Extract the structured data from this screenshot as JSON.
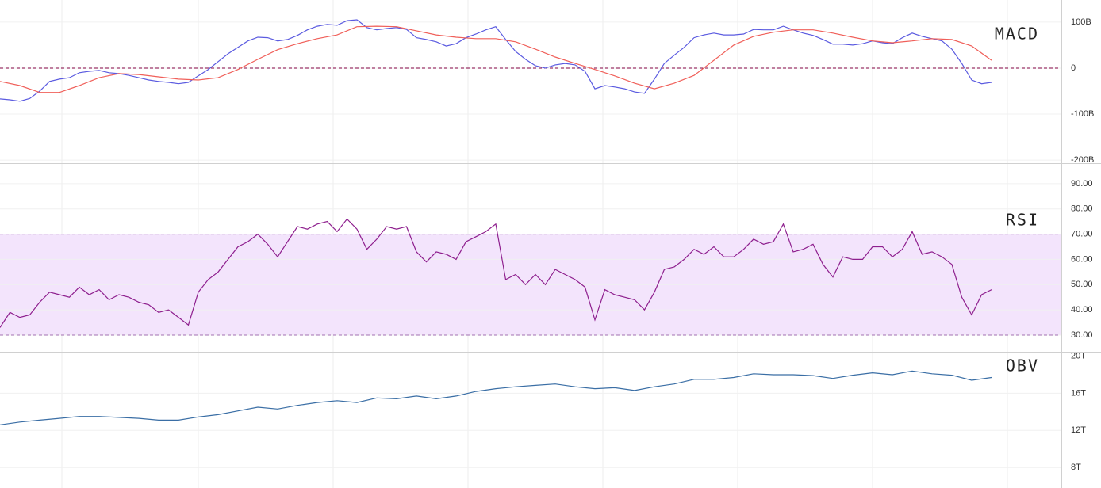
{
  "chart_data": [
    {
      "type": "line",
      "title": "MACD",
      "ylim": [
        -205,
        148
      ],
      "yticks": [
        {
          "value": 100,
          "label": "100B"
        },
        0,
        {
          "value": -100,
          "label": "-100B"
        },
        {
          "value": -200,
          "label": "-200B"
        }
      ],
      "grid": true,
      "zero_line": 0,
      "zero_color": "#800040",
      "series": [
        {
          "color": "#5b5be0",
          "values": [
            -67,
            -69,
            -72,
            -66,
            -50,
            -29,
            -24,
            -21,
            -10,
            -7,
            -5,
            -10,
            -12,
            -16,
            -21,
            -26,
            -29,
            -31,
            -34,
            -31,
            -17,
            -3,
            14,
            31,
            45,
            59,
            67,
            66,
            59,
            62,
            71,
            83,
            91,
            95,
            93,
            103,
            105,
            88,
            83,
            86,
            88,
            84,
            66,
            62,
            57,
            48,
            53,
            66,
            74,
            83,
            90,
            62,
            36,
            19,
            5,
            0,
            7,
            10,
            7,
            -7,
            -45,
            -38,
            -41,
            -45,
            -52,
            -55,
            -24,
            10,
            28,
            45,
            66,
            72,
            76,
            72,
            72,
            74,
            84,
            83,
            83,
            91,
            83,
            76,
            71,
            62,
            52,
            52,
            50,
            53,
            59,
            55,
            53,
            66,
            76,
            69,
            64,
            59,
            41,
            10,
            -26,
            -34,
            -31
          ]
        },
        {
          "color": "#f0605a",
          "values": [
            -29,
            -38,
            -53,
            -53,
            -38,
            -21,
            -12,
            -14,
            -19,
            -24,
            -26,
            -21,
            -3,
            19,
            40,
            53,
            64,
            72,
            90,
            91,
            90,
            81,
            72,
            67,
            64,
            64,
            57,
            41,
            24,
            10,
            -3,
            -17,
            -33,
            -45,
            -33,
            -16,
            17,
            50,
            69,
            78,
            83,
            83,
            76,
            67,
            59,
            55,
            59,
            64,
            62,
            48,
            17
          ]
        }
      ]
    },
    {
      "type": "line",
      "title": "RSI",
      "ylim": [
        23.7,
        97.5
      ],
      "yticks": [
        {
          "value": 90,
          "label": "90.00"
        },
        {
          "value": 80,
          "label": "80.00"
        },
        {
          "value": 70,
          "label": "70.00"
        },
        {
          "value": 60,
          "label": "60.00"
        },
        {
          "value": 50,
          "label": "50.00"
        },
        {
          "value": 40,
          "label": "40.00"
        },
        {
          "value": 30,
          "label": "30.00"
        }
      ],
      "grid": true,
      "band": [
        30,
        70
      ],
      "band_color": "#f3e4fc",
      "band_line_color": "#a070b0",
      "series": [
        {
          "color": "#8e1f8e",
          "values": [
            33,
            39,
            37,
            38,
            43,
            47,
            46,
            45,
            49,
            46,
            48,
            44,
            46,
            45,
            43,
            42,
            39,
            40,
            37,
            34,
            47,
            52,
            55,
            60,
            65,
            67,
            70,
            66,
            61,
            67,
            73,
            72,
            74,
            75,
            71,
            76,
            72,
            64,
            68,
            73,
            72,
            73,
            63,
            59,
            63,
            62,
            60,
            67,
            69,
            71,
            74,
            52,
            54,
            50,
            54,
            50,
            56,
            54,
            52,
            49,
            36,
            48,
            46,
            45,
            44,
            40,
            47,
            56,
            57,
            60,
            64,
            62,
            65,
            61,
            61,
            64,
            68,
            66,
            67,
            74,
            63,
            64,
            66,
            58,
            53,
            61,
            60,
            60,
            65,
            65,
            61,
            64,
            71,
            62,
            63,
            61,
            58,
            45,
            38,
            46,
            48
          ]
        }
      ]
    },
    {
      "type": "line",
      "title": "OBV",
      "ylim": [
        5.8,
        20.3
      ],
      "yticks": [
        {
          "value": 20,
          "label": "20T"
        },
        {
          "value": 16,
          "label": "16T"
        },
        {
          "value": 12,
          "label": "12T"
        },
        {
          "value": 8,
          "label": "8T"
        }
      ],
      "grid": true,
      "series": [
        {
          "color": "#3a6ea5",
          "values": [
            12.6,
            12.9,
            13.1,
            13.3,
            13.5,
            13.5,
            13.4,
            13.3,
            13.1,
            13.1,
            13.45,
            13.7,
            14.1,
            14.5,
            14.3,
            14.7,
            15.0,
            15.2,
            15.0,
            15.5,
            15.4,
            15.7,
            15.4,
            15.7,
            16.2,
            16.5,
            16.7,
            16.85,
            17.0,
            16.7,
            16.5,
            16.6,
            16.3,
            16.7,
            17.0,
            17.5,
            17.5,
            17.7,
            18.1,
            18.0,
            18.0,
            17.9,
            17.6,
            17.95,
            18.2,
            18.0,
            18.4,
            18.1,
            17.95,
            17.4,
            17.7
          ]
        }
      ]
    }
  ]
}
